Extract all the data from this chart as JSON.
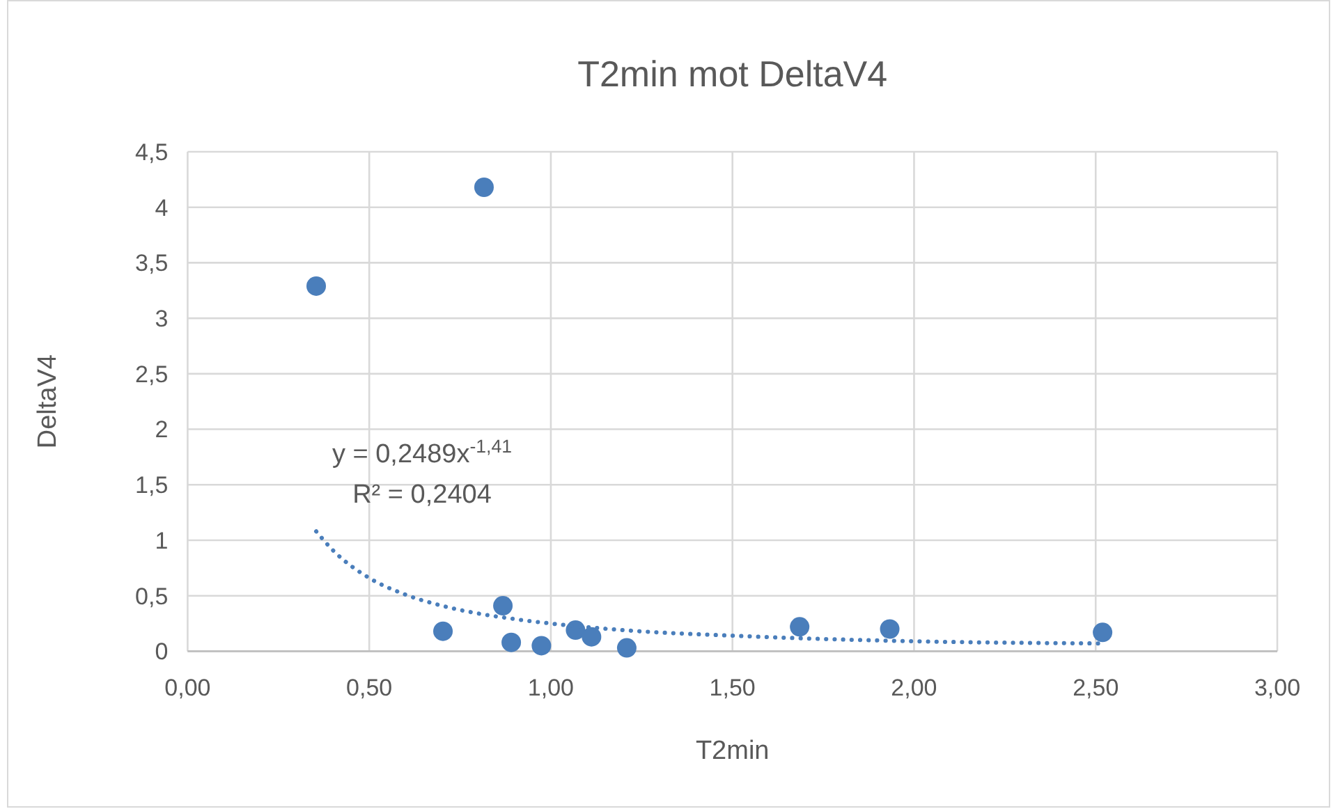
{
  "chart_data": {
    "type": "scatter",
    "title": "T2min mot DeltaV4",
    "xlabel": "T2min",
    "ylabel": "DeltaV4",
    "xlim": [
      0,
      3
    ],
    "xticks": [
      {
        "value": 0,
        "label": "0,00"
      },
      {
        "value": 0.5,
        "label": "0,50"
      },
      {
        "value": 1,
        "label": "1,00"
      },
      {
        "value": 1.5,
        "label": "1,50"
      },
      {
        "value": 2,
        "label": "2,00"
      },
      {
        "value": 2.5,
        "label": "2,50"
      },
      {
        "value": 3,
        "label": "3,00"
      }
    ],
    "ylim": [
      0,
      4.5
    ],
    "yticks": [
      0,
      {
        "value": 0.5,
        "label": "0,5"
      },
      1,
      {
        "value": 1.5,
        "label": "1,5"
      },
      2,
      {
        "value": 2.5,
        "label": "2,5"
      },
      3,
      {
        "value": 3.5,
        "label": "3,5"
      },
      4,
      {
        "value": 4.5,
        "label": "4,5"
      }
    ],
    "grid": true,
    "marker": "circle",
    "series": [
      {
        "color": "#4a7ebb",
        "x": [
          0.354,
          0.816,
          0.703,
          0.868,
          0.891,
          0.974,
          1.068,
          1.112,
          1.209,
          1.685,
          1.933,
          2.519
        ],
        "values": [
          3.29,
          4.18,
          0.18,
          0.41,
          0.08,
          0.05,
          0.19,
          0.13,
          0.03,
          0.22,
          0.2,
          0.17
        ]
      },
      {
        "type": "line",
        "color": "#4a7ebb",
        "line_style": "dotted",
        "marker": "none",
        "x": [
          0.354,
          0.4,
          0.5,
          0.6,
          0.7,
          0.8,
          0.9,
          1.0,
          1.2,
          1.5,
          2.0,
          2.519
        ],
        "values": [
          1.08,
          0.91,
          0.66,
          0.51,
          0.41,
          0.34,
          0.29,
          0.25,
          0.19,
          0.14,
          0.09,
          0.07
        ]
      }
    ],
    "annotations": [
      "y = 0,2489x$^{-1,41}$",
      "R² = 0,2404"
    ]
  }
}
